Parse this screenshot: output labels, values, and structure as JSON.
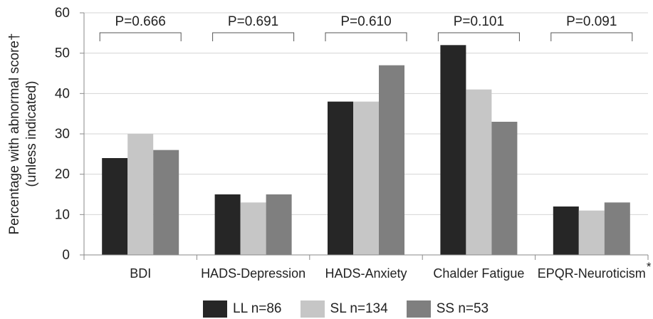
{
  "chart_data": {
    "type": "bar",
    "ylabel_line1": "Percentage with abnormal score†",
    "ylabel_line2": "(unless indicated)",
    "ylim": [
      0,
      60
    ],
    "yticks": [
      0,
      10,
      20,
      30,
      40,
      50,
      60
    ],
    "categories": [
      "BDI",
      "HADS-Depression",
      "HADS-Anxiety",
      "Chalder Fatigue",
      "EPQR-Neuroticism"
    ],
    "category_suffix": [
      "",
      "",
      "",
      "",
      "*"
    ],
    "series": [
      {
        "name": "LL n=86",
        "color": "#262626",
        "values": [
          24,
          15,
          38,
          52,
          12
        ]
      },
      {
        "name": "SL n=134",
        "color": "#c6c6c6",
        "values": [
          30,
          13,
          38,
          41,
          11
        ]
      },
      {
        "name": "SS n=53",
        "color": "#7f7f7f",
        "values": [
          26,
          15,
          47,
          33,
          13
        ]
      }
    ],
    "p_values": [
      "P=0.666",
      "P=0.691",
      "P=0.610",
      "P=0.101",
      "P=0.091"
    ],
    "grid": true,
    "legend_position": "bottom"
  }
}
